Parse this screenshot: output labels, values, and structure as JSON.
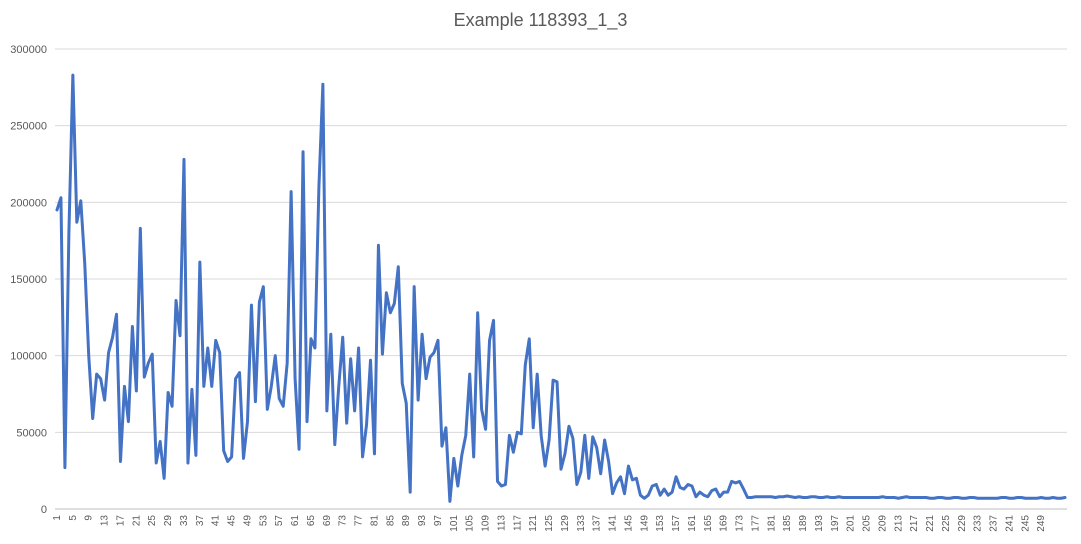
{
  "chart_data": {
    "type": "line",
    "title": "Example 118393_1_3",
    "xlabel": "",
    "ylabel": "",
    "ylim": [
      0,
      300000
    ],
    "yticks": [
      0,
      50000,
      100000,
      150000,
      200000,
      250000,
      300000
    ],
    "ytick_labels": [
      "0",
      "50000",
      "100000",
      "150000",
      "200000",
      "250000",
      "300000"
    ],
    "xtick_labels": [
      "1",
      "5",
      "9",
      "13",
      "17",
      "21",
      "25",
      "29",
      "33",
      "37",
      "41",
      "45",
      "49",
      "53",
      "57",
      "61",
      "65",
      "69",
      "73",
      "77",
      "81",
      "85",
      "89",
      "93",
      "97",
      "101",
      "105",
      "109",
      "113",
      "117",
      "121",
      "125",
      "129",
      "133",
      "137",
      "141",
      "145",
      "149",
      "153",
      "157",
      "161",
      "165",
      "169",
      "173",
      "177",
      "181",
      "185",
      "189",
      "193",
      "197",
      "201",
      "205",
      "209",
      "213",
      "217",
      "221",
      "225",
      "229",
      "233",
      "237",
      "241",
      "245",
      "249"
    ],
    "grid": true,
    "legend": "none",
    "series": [
      {
        "color": "#4472c4",
        "x_start": 1,
        "values": [
          195000,
          203000,
          27000,
          180000,
          283000,
          187000,
          201000,
          160000,
          100000,
          59000,
          88000,
          85000,
          71000,
          102000,
          112000,
          127000,
          31000,
          80000,
          57000,
          119000,
          77000,
          183000,
          86000,
          95000,
          101000,
          30000,
          44000,
          20000,
          76000,
          67000,
          136000,
          113000,
          228000,
          30000,
          78000,
          35000,
          161000,
          80000,
          105000,
          80000,
          110000,
          102000,
          38000,
          31000,
          34000,
          85000,
          89000,
          33000,
          57000,
          133000,
          70000,
          135000,
          145000,
          65000,
          80000,
          100000,
          72000,
          67000,
          95000,
          207000,
          85000,
          39000,
          233000,
          57000,
          111000,
          105000,
          210000,
          277000,
          64000,
          114000,
          42000,
          80000,
          112000,
          56000,
          98000,
          64000,
          105000,
          34000,
          55000,
          97000,
          36000,
          172000,
          101000,
          141000,
          128000,
          134000,
          158000,
          82000,
          69000,
          11000,
          145000,
          71000,
          114000,
          85000,
          99000,
          102000,
          110000,
          41000,
          53000,
          5000,
          33000,
          15000,
          35000,
          48000,
          88000,
          34000,
          128000,
          65000,
          52000,
          110000,
          123000,
          18000,
          15000,
          16000,
          48000,
          37000,
          50000,
          49000,
          94000,
          111000,
          53000,
          88000,
          48000,
          28000,
          45000,
          84000,
          83000,
          26000,
          36000,
          54000,
          46000,
          16000,
          24000,
          48000,
          20000,
          47000,
          40000,
          23000,
          45000,
          31000,
          10000,
          17000,
          21000,
          10000,
          28000,
          19000,
          20000,
          9000,
          7000,
          9000,
          15000,
          16000,
          9000,
          13000,
          9000,
          11000,
          21000,
          14000,
          13000,
          16000,
          15000,
          8000,
          11000,
          9000,
          8000,
          12000,
          13000,
          8000,
          11000,
          11000,
          18000,
          17000,
          18000,
          13000,
          7500,
          7500,
          8000,
          8000,
          8000,
          8000,
          8000,
          7500,
          8000,
          8000,
          8500,
          8000,
          7500,
          8000,
          7500,
          7500,
          8000,
          8000,
          7500,
          7500,
          8000,
          7500,
          7500,
          8000,
          7500,
          7500,
          7500,
          7500,
          7500,
          7500,
          7500,
          7500,
          7500,
          7500,
          8000,
          7500,
          7500,
          7500,
          7000,
          7500,
          8000,
          7500,
          7500,
          7500,
          7500,
          7500,
          7000,
          7000,
          7500,
          7500,
          7000,
          7000,
          7500,
          7500,
          7000,
          7000,
          7500,
          7500,
          7000,
          7000,
          7000,
          7000,
          7000,
          7000,
          7500,
          7500,
          7000,
          7000,
          7500,
          7500,
          7000,
          7000,
          7000,
          7000,
          7500,
          7000,
          7000,
          7500,
          7000,
          7000,
          7500
        ]
      }
    ]
  }
}
